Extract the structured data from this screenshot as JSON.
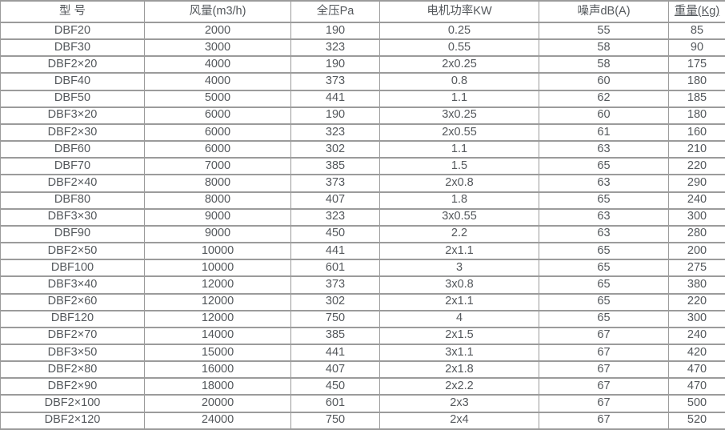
{
  "colors": {
    "background": "#ffffff",
    "border": "#9b9b9b",
    "text": "#54585c"
  },
  "table": {
    "columns": [
      {
        "label": "型 号"
      },
      {
        "label": "风量(m3/h)"
      },
      {
        "label": "全压Pa"
      },
      {
        "label": "电机功率KW"
      },
      {
        "label": "噪声dB(A)"
      },
      {
        "label": "重量(Kg)"
      }
    ],
    "rows": [
      [
        "DBF20",
        "2000",
        "190",
        "0.25",
        "55",
        "85"
      ],
      [
        "DBF30",
        "3000",
        "323",
        "0.55",
        "58",
        "90"
      ],
      [
        "DBF2×20",
        "4000",
        "190",
        "2x0.25",
        "58",
        "175"
      ],
      [
        "DBF40",
        "4000",
        "373",
        "0.8",
        "60",
        "180"
      ],
      [
        "DBF50",
        "5000",
        "441",
        "1.1",
        "62",
        "185"
      ],
      [
        "DBF3×20",
        "6000",
        "190",
        "3x0.25",
        "60",
        "180"
      ],
      [
        "DBF2×30",
        "6000",
        "323",
        "2x0.55",
        "61",
        "160"
      ],
      [
        "DBF60",
        "6000",
        "302",
        "1.1",
        "63",
        "210"
      ],
      [
        "DBF70",
        "7000",
        "385",
        "1.5",
        "65",
        "220"
      ],
      [
        "DBF2×40",
        "8000",
        "373",
        "2x0.8",
        "63",
        "290"
      ],
      [
        "DBF80",
        "8000",
        "407",
        "1.8",
        "65",
        "240"
      ],
      [
        "DBF3×30",
        "9000",
        "323",
        "3x0.55",
        "63",
        "300"
      ],
      [
        "DBF90",
        "9000",
        "450",
        "2.2",
        "63",
        "280"
      ],
      [
        "DBF2×50",
        "10000",
        "441",
        "2x1.1",
        "65",
        "200"
      ],
      [
        "DBF100",
        "10000",
        "601",
        "3",
        "65",
        "275"
      ],
      [
        "DBF3×40",
        "12000",
        "373",
        "3x0.8",
        "65",
        "380"
      ],
      [
        "DBF2×60",
        "12000",
        "302",
        "2x1.1",
        "65",
        "220"
      ],
      [
        "DBF120",
        "12000",
        "750",
        "4",
        "65",
        "300"
      ],
      [
        "DBF2×70",
        "14000",
        "385",
        "2x1.5",
        "67",
        "240"
      ],
      [
        "DBF3×50",
        "15000",
        "441",
        "3x1.1",
        "67",
        "420"
      ],
      [
        "DBF2×80",
        "16000",
        "407",
        "2x1.8",
        "67",
        "470"
      ],
      [
        "DBF2×90",
        "18000",
        "450",
        "2x2.2",
        "67",
        "470"
      ],
      [
        "DBF2×100",
        "20000",
        "601",
        "2x3",
        "67",
        "500"
      ],
      [
        "DBF2×120",
        "24000",
        "750",
        "2x4",
        "67",
        "520"
      ]
    ]
  }
}
